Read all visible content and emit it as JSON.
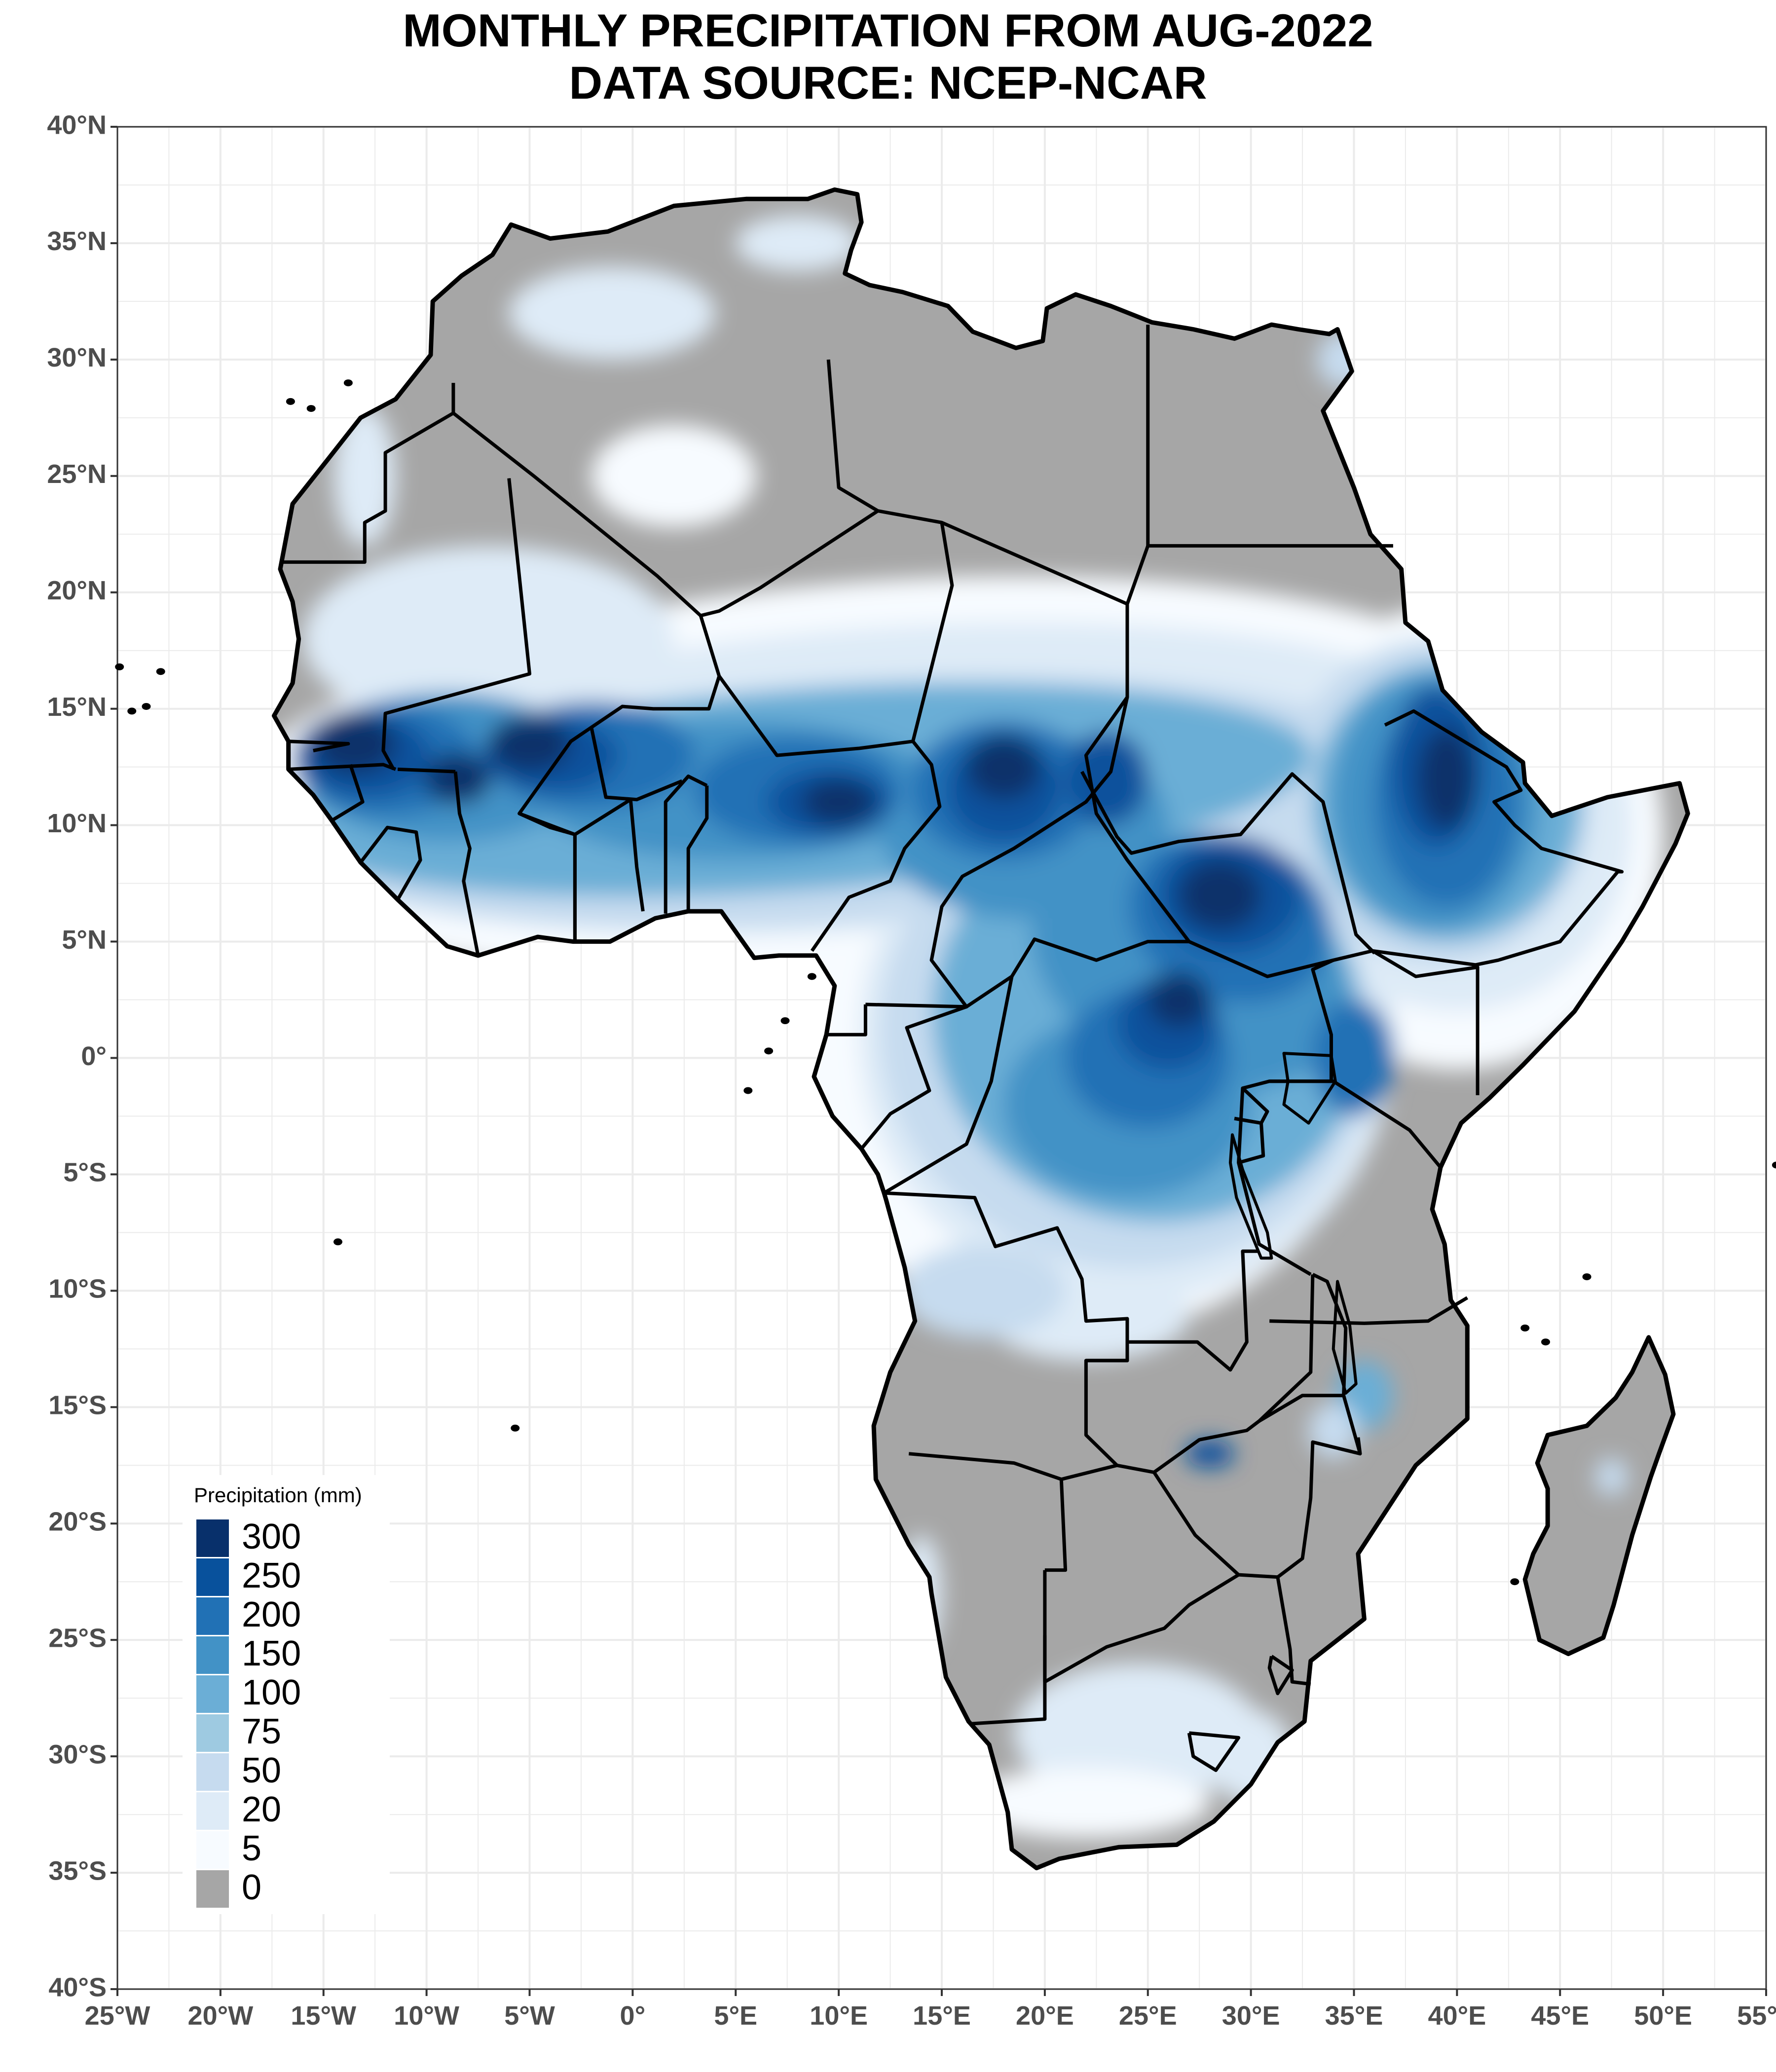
{
  "title": {
    "line1": "MONTHLY PRECIPITATION  FROM AUG-2022",
    "line2": "DATA SOURCE: NCEP-NCAR"
  },
  "map": {
    "region": "Africa",
    "x_ticks": [
      "25°W",
      "20°W",
      "15°W",
      "10°W",
      "5°W",
      "0°",
      "5°E",
      "10°E",
      "15°E",
      "20°E",
      "25°E",
      "30°E",
      "35°E",
      "40°E",
      "45°E",
      "50°E",
      "55°E"
    ],
    "y_ticks": [
      "40°N",
      "35°N",
      "30°N",
      "25°N",
      "20°N",
      "15°N",
      "10°N",
      "5°N",
      "0°",
      "5°S",
      "10°S",
      "15°S",
      "20°S",
      "25°S",
      "30°S",
      "35°S",
      "40°S"
    ],
    "lon_range": [
      -25,
      55
    ],
    "lat_range": [
      -40,
      40
    ],
    "no_data_color": "#a6a6a6",
    "border_color": "#000000"
  },
  "legend": {
    "title": "Precipitation (mm)",
    "entries": [
      {
        "label": "300",
        "color": "#08306b"
      },
      {
        "label": "250",
        "color": "#08519c"
      },
      {
        "label": "200",
        "color": "#2171b5"
      },
      {
        "label": "150",
        "color": "#4292c6"
      },
      {
        "label": "100",
        "color": "#6baed6"
      },
      {
        "label": "75",
        "color": "#9ecae1"
      },
      {
        "label": "50",
        "color": "#c6dbef"
      },
      {
        "label": "20",
        "color": "#deebf7"
      },
      {
        "label": "5",
        "color": "#f7fbff"
      },
      {
        "label": "0",
        "color": "#a6a6a6"
      }
    ]
  }
}
